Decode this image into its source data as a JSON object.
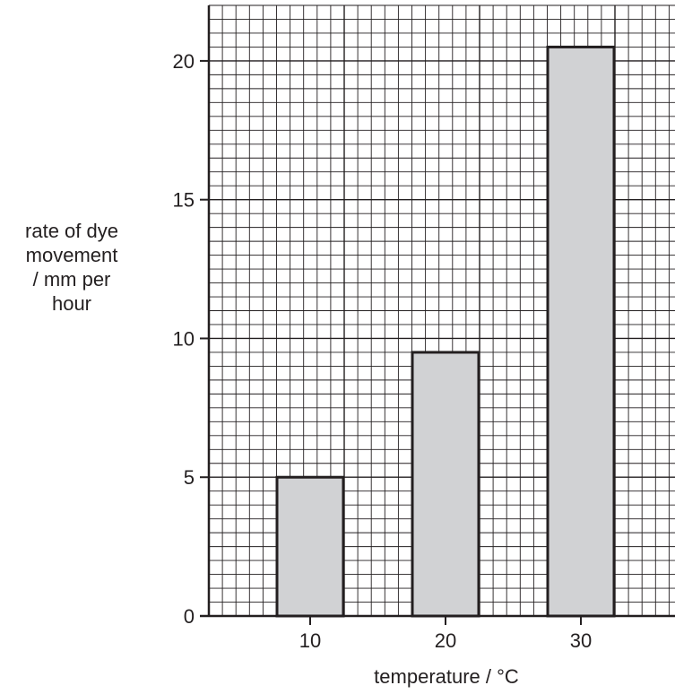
{
  "chart_data": {
    "type": "bar",
    "title": "",
    "categories": [
      "10",
      "20",
      "30"
    ],
    "values": [
      5,
      9.5,
      20.5
    ],
    "xlabel": "temperature / °C",
    "ylabel_lines": [
      "rate of dye",
      "movement",
      "/ mm per",
      "hour"
    ],
    "ylim": [
      0,
      22
    ],
    "yticks": [
      0,
      5,
      10,
      15,
      20
    ],
    "grid": true,
    "bar_color": "#d1d2d4",
    "bar_edge_color": "#231f20",
    "grid_color": "#231f20"
  }
}
